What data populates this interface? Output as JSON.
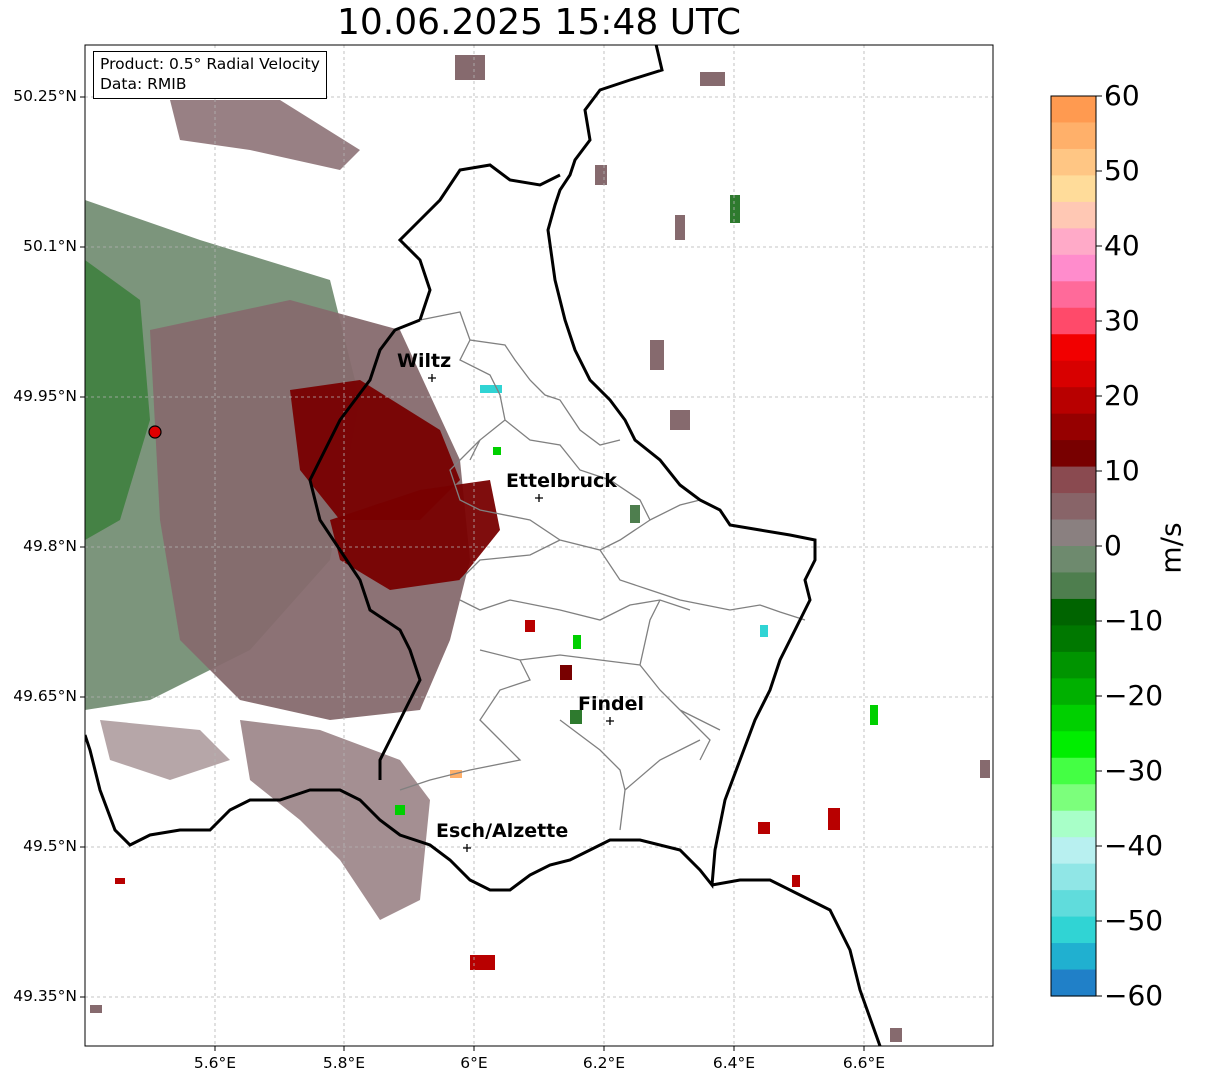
{
  "title": "10.06.2025 15:48 UTC",
  "info": {
    "product": "Product: 0.5° Radial Velocity",
    "source": "Data: RMIB"
  },
  "lat_ticks": [
    "50.25°N",
    "50.1°N",
    "49.95°N",
    "49.8°N",
    "49.65°N",
    "49.5°N",
    "49.35°N"
  ],
  "lon_ticks": [
    "5.6°E",
    "5.8°E",
    "6°E",
    "6.2°E",
    "6.4°E",
    "6.6°E"
  ],
  "cities": [
    {
      "name": "Wiltz"
    },
    {
      "name": "Ettelbruck"
    },
    {
      "name": "Findel"
    },
    {
      "name": "Esch/Alzette"
    }
  ],
  "colorbar": {
    "unit": "m/s",
    "min": -60,
    "max": 60,
    "ticks": [
      "60",
      "50",
      "40",
      "30",
      "20",
      "10",
      "0",
      "−10",
      "−20",
      "−30",
      "−40",
      "−50",
      "−60"
    ],
    "colors": [
      "#ff9a50",
      "#ffb06a",
      "#ffc684",
      "#ffdc9a",
      "#ffc8b4",
      "#ffaac8",
      "#ff8ccc",
      "#ff6a9a",
      "#ff4a6a",
      "#f20000",
      "#d80000",
      "#b80000",
      "#960000",
      "#780000",
      "#8a4a50",
      "#886468",
      "#8a8080",
      "#6e8a6e",
      "#4e7e4e",
      "#006400",
      "#007800",
      "#009400",
      "#00b000",
      "#00d000",
      "#00ee00",
      "#44ff44",
      "#7cff7c",
      "#a8ffc8",
      "#b8f0f0",
      "#90e6e6",
      "#60dcdc",
      "#30d4d4",
      "#20b0d0",
      "#2080c8"
    ]
  },
  "radar": {
    "lat": 49.914,
    "lon": 5.506
  },
  "map_extent": {
    "lon_min": 5.4,
    "lon_max": 6.8,
    "lat_min": 49.3,
    "lat_max": 50.3
  }
}
